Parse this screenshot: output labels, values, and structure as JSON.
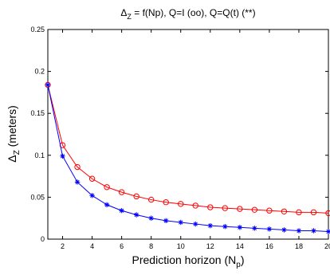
{
  "chart_data": {
    "type": "line",
    "title_parts": {
      "a": "Δ",
      "a_sub": "Z",
      "b": " = f(Np), Q=I (oo), Q=Q(t) (**)"
    },
    "xlabel_parts": {
      "a": "Prediction horizon (N",
      "a_sub": "p",
      "b": ")"
    },
    "ylabel_parts": {
      "a": "Δ",
      "a_sub": "Z",
      "b": " (meters)"
    },
    "xlim": [
      1,
      20
    ],
    "ylim": [
      0,
      0.25
    ],
    "xticks": [
      2,
      4,
      6,
      8,
      10,
      12,
      14,
      16,
      18,
      20
    ],
    "xtick_labels": [
      "2",
      "4",
      "6",
      "8",
      "10",
      "12",
      "14",
      "16",
      "18",
      "20"
    ],
    "yticks": [
      0,
      0.05,
      0.1,
      0.15,
      0.2,
      0.25
    ],
    "ytick_labels": [
      "0",
      "0.05",
      "0.1",
      "0.15",
      "0.2",
      "0.25"
    ],
    "grid": false,
    "x": [
      1,
      2,
      3,
      4,
      5,
      6,
      7,
      8,
      9,
      10,
      11,
      12,
      13,
      14,
      15,
      16,
      17,
      18,
      19,
      20
    ],
    "series": [
      {
        "marker": "circle",
        "color": "#ff0000",
        "values": [
          0.184,
          0.112,
          0.086,
          0.072,
          0.062,
          0.056,
          0.051,
          0.047,
          0.044,
          0.042,
          0.04,
          0.038,
          0.037,
          0.036,
          0.035,
          0.034,
          0.033,
          0.032,
          0.032,
          0.031
        ]
      },
      {
        "marker": "star",
        "color": "#0000ff",
        "values": [
          0.184,
          0.099,
          0.068,
          0.052,
          0.041,
          0.034,
          0.029,
          0.025,
          0.022,
          0.02,
          0.018,
          0.016,
          0.015,
          0.014,
          0.013,
          0.012,
          0.011,
          0.01,
          0.01,
          0.009
        ]
      }
    ]
  }
}
